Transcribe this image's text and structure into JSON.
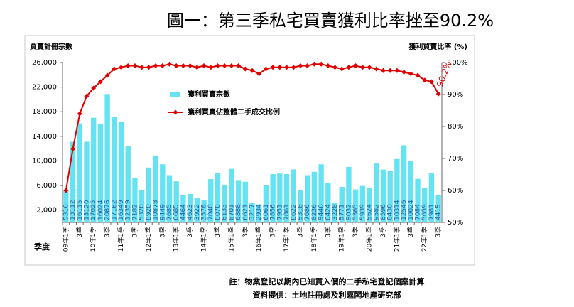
{
  "chart_data": {
    "type": "combo",
    "title": "圖一：第三季私宅買賣獲利比率挫至90.2%",
    "y_label": "買賣計冊宗數",
    "y2_label": "獲利買賣比率 (%)",
    "x_label": "季度",
    "notes": [
      "註：物業登記以期內已知買入價的二手私宅登記個案計算",
      "資料提供：土地註冊處及利嘉閣地產研究部"
    ],
    "categories": [
      "09年1季",
      null,
      "3季",
      null,
      "10年1季",
      null,
      "3季",
      null,
      "11年1季",
      null,
      "3季",
      null,
      "12年1季",
      null,
      "3季",
      null,
      "13年1季",
      null,
      "3季",
      null,
      "14年1季",
      null,
      "3季",
      null,
      "15年1季",
      null,
      "3季",
      null,
      "16年1季",
      null,
      "3季",
      null,
      "17年1季",
      null,
      "3季",
      null,
      "18年1季",
      null,
      "3季",
      null,
      "19年1季",
      null,
      "3季",
      null,
      "20年1季",
      null,
      "3季",
      null,
      "21年1季",
      null,
      "3季",
      null,
      "22年1季",
      null,
      "3季"
    ],
    "series": [
      {
        "name": "獲利買賣宗數",
        "type": "bar",
        "color": "#66e3f2",
        "label_color": "#1f5fa8",
        "values": [
          5316,
          13112,
          16115,
          13120,
          17025,
          16024,
          20876,
          17162,
          16349,
          12359,
          7182,
          5320,
          8920,
          10878,
          9449,
          7685,
          6685,
          4464,
          4623,
          3922,
          3578,
          7040,
          8070,
          6133,
          8701,
          6888,
          6621,
          3217,
          2934,
          6061,
          7856,
          7951,
          7861,
          8622,
          5318,
          7686,
          8236,
          9446,
          6424,
          3228,
          5771,
          9032,
          5365,
          5939,
          5624,
          9582,
          8596,
          8430,
          10314,
          12546,
          10024,
          7084,
          5659,
          7981,
          4415
        ]
      },
      {
        "name": "獲利買賣佔整體二手成交比例",
        "type": "line",
        "axis": "y2",
        "color": "#e00000",
        "values": [
          60,
          73,
          84,
          89.5,
          92,
          94,
          96,
          98,
          98.5,
          99,
          99,
          98.5,
          98.5,
          99,
          99,
          99.5,
          99,
          99,
          99,
          98.5,
          99,
          98.5,
          99,
          99,
          99,
          99,
          98,
          97.5,
          96.5,
          98,
          98.5,
          98.5,
          98.5,
          98.5,
          99,
          99,
          99.5,
          99.5,
          99,
          98.5,
          98,
          98.5,
          99,
          98.5,
          98.5,
          98,
          97.5,
          97.5,
          97.5,
          97,
          96.5,
          96,
          94.5,
          94,
          90.2
        ],
        "value_labels": [
          null,
          null,
          null,
          null,
          null,
          null,
          null,
          null,
          null,
          null,
          null,
          null,
          null,
          null,
          null,
          null,
          null,
          null,
          null,
          null,
          null,
          null,
          null,
          null,
          null,
          null,
          null,
          null,
          null,
          null,
          null,
          null,
          null,
          null,
          null,
          null,
          null,
          null,
          null,
          null,
          null,
          null,
          null,
          null,
          null,
          null,
          null,
          null,
          null,
          null,
          null,
          null,
          null,
          null,
          "90.2%"
        ]
      }
    ],
    "ylim": [
      0,
      26000
    ],
    "yticks": [
      {
        "value": 2000,
        "label": "2,000"
      },
      {
        "value": 6000,
        "label": "6,000"
      },
      {
        "value": 10000,
        "label": "10,000"
      },
      {
        "value": 14000,
        "label": "14,000"
      },
      {
        "value": 18000,
        "label": "18,000"
      },
      {
        "value": 22000,
        "label": "22,000"
      },
      {
        "value": 26000,
        "label": "26,000"
      }
    ],
    "y2lim": [
      50,
      100
    ],
    "y2ticks": [
      {
        "value": 50,
        "label": "50%"
      },
      {
        "value": 60,
        "label": "60%"
      },
      {
        "value": 70,
        "label": "70%"
      },
      {
        "value": 80,
        "label": "80%"
      },
      {
        "value": 90,
        "label": "90%"
      },
      {
        "value": 100,
        "label": "100%"
      }
    ],
    "grid": false
  }
}
